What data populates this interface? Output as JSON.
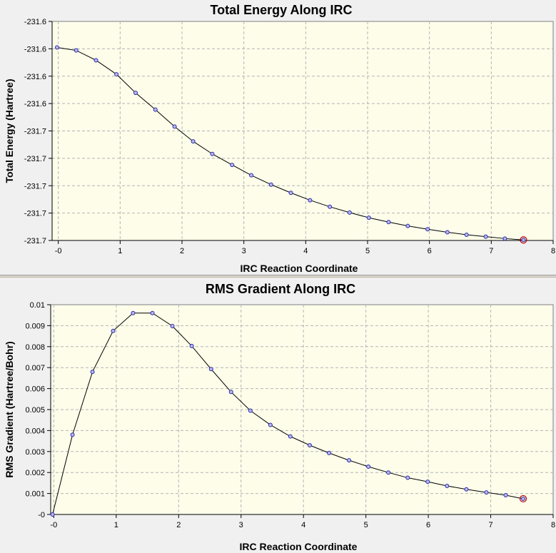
{
  "chart_data": [
    {
      "type": "line",
      "title": "Total Energy Along IRC",
      "xlabel": "IRC Reaction Coordinate",
      "ylabel": "Total Energy (Hartree)",
      "xlim": [
        -0.1,
        8
      ],
      "ylim": [
        -231.704,
        -231.624
      ],
      "x_ticks": [
        0,
        1,
        2,
        3,
        4,
        5,
        6,
        7,
        8
      ],
      "x_tick_labels": [
        "-0",
        "1",
        "2",
        "3",
        "4",
        "5",
        "6",
        "7",
        "8"
      ],
      "y_ticks": [
        -231.624,
        -231.634,
        -231.644,
        -231.654,
        -231.664,
        -231.674,
        -231.684,
        -231.694,
        -231.704
      ],
      "y_tick_labels": [
        "-231.6",
        "-231.6",
        "-231.6",
        "-231.6",
        "-231.7",
        "-231.7",
        "-231.7",
        "-231.7",
        "-231.7"
      ],
      "grid": true,
      "colors": {
        "plot_bg": "#fdfdea",
        "marker": "#2a2aa8",
        "line": "#000000",
        "highlight": "#c00000",
        "grid": "#b4b4b4"
      },
      "series": [
        {
          "x": [
            -0.02,
            0.29,
            0.61,
            0.94,
            1.25,
            1.57,
            1.88,
            2.18,
            2.49,
            2.81,
            3.12,
            3.44,
            3.76,
            4.07,
            4.39,
            4.71,
            5.02,
            5.34,
            5.65,
            5.97,
            6.29,
            6.6,
            6.91,
            7.22,
            7.52
          ],
          "y": [
            -231.6335,
            -231.6346,
            -231.6382,
            -231.6433,
            -231.6501,
            -231.6562,
            -231.6624,
            -231.6678,
            -231.6724,
            -231.6764,
            -231.6802,
            -231.6836,
            -231.6866,
            -231.6893,
            -231.6917,
            -231.6938,
            -231.6957,
            -231.6973,
            -231.6987,
            -231.6999,
            -231.701,
            -231.7019,
            -231.7026,
            -231.7033,
            -231.7038
          ]
        }
      ]
    },
    {
      "type": "line",
      "title": "RMS Gradient Along IRC",
      "xlabel": "IRC Reaction Coordinate",
      "ylabel": "RMS Gradient (Hartree/Bohr)",
      "xlim": [
        -0.05,
        8
      ],
      "ylim": [
        0,
        0.01
      ],
      "x_ticks": [
        0,
        1,
        2,
        3,
        4,
        5,
        6,
        7,
        8
      ],
      "x_tick_labels": [
        "-0",
        "1",
        "2",
        "3",
        "4",
        "5",
        "6",
        "7",
        "8"
      ],
      "y_ticks": [
        0,
        0.001,
        0.002,
        0.003,
        0.004,
        0.005,
        0.006,
        0.007,
        0.008,
        0.009,
        0.01
      ],
      "y_tick_labels": [
        "-0",
        "0.001",
        "0.002",
        "0.003",
        "0.004",
        "0.005",
        "0.006",
        "0.007",
        "0.008",
        "0.009",
        "0.01"
      ],
      "grid": true,
      "colors": {
        "plot_bg": "#fdfdea",
        "marker": "#2a2aa8",
        "line": "#000000",
        "highlight": "#c00000",
        "grid": "#b4b4b4"
      },
      "series": [
        {
          "x": [
            -0.02,
            0.3,
            0.62,
            0.95,
            1.27,
            1.58,
            1.9,
            2.21,
            2.52,
            2.84,
            3.15,
            3.47,
            3.79,
            4.1,
            4.41,
            4.73,
            5.04,
            5.36,
            5.67,
            5.99,
            6.3,
            6.61,
            6.93,
            7.24,
            7.52
          ],
          "y": [
            0.0,
            0.0038,
            0.0068,
            0.00875,
            0.0096,
            0.0096,
            0.00898,
            0.00803,
            0.00693,
            0.00584,
            0.00495,
            0.00427,
            0.00372,
            0.0033,
            0.00293,
            0.00258,
            0.00228,
            0.002,
            0.00175,
            0.00156,
            0.00136,
            0.0012,
            0.00105,
            0.00092,
            0.00075
          ]
        }
      ]
    }
  ]
}
